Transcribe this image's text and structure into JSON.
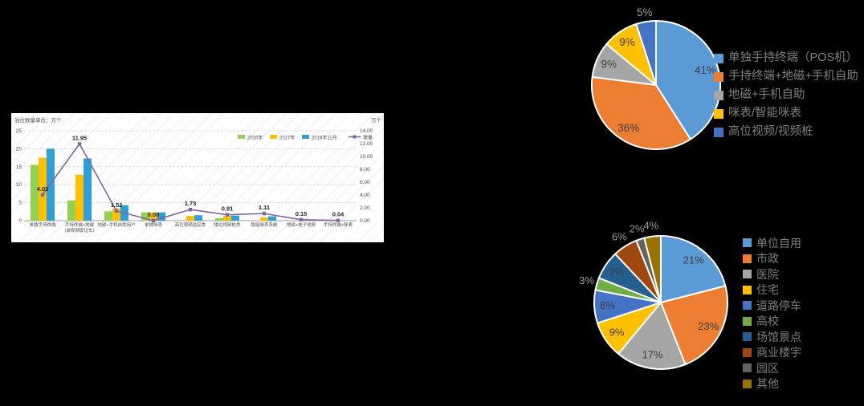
{
  "page": {
    "background": "#000000"
  },
  "styles": {
    "panel_bg": "#ffffff",
    "grid_color": "#d9d9d9",
    "axis_line_color": "#9e9e9e",
    "axis_text_color": "#4d4d4d",
    "data_label_color": "#262626",
    "legend_text_color": "#7f7f7f",
    "pie_inside_label_color": "#3d3d3d",
    "pie_outside_label_color": "#9b9b9b",
    "pie_border_color": "#ffffff"
  },
  "chart_data": [
    {
      "id": "berth-count-combo",
      "type": "bar",
      "subtype": "bar+line",
      "left_axis_title": "泊位数量单位：万个",
      "right_axis_title": "万个",
      "categories": [
        "单独手持终端",
        "手持终端+地磁\n（或视频取证车）",
        "地磁+手机自助用户",
        "单独咪表",
        "高位视频监控类",
        "矮位视频桩类",
        "智能咪表系统",
        "地磁+电子收费",
        "手持终端+咪表"
      ],
      "series": [
        {
          "name": "2016年",
          "kind": "bar",
          "color": "#92D050",
          "values": [
            15.5,
            5.6,
            2.6,
            2.3,
            0,
            0.7,
            0,
            0.1,
            0
          ]
        },
        {
          "name": "2017年",
          "kind": "bar",
          "color": "#FFC000",
          "values": [
            17.5,
            12.8,
            3.4,
            2.3,
            1.3,
            1.3,
            0.9,
            0.1,
            0.05
          ]
        },
        {
          "name": "2018年11月",
          "kind": "bar",
          "color": "#2F9FD8",
          "values": [
            20,
            17.3,
            4.3,
            2.3,
            1.5,
            1.4,
            1.2,
            0.1,
            0.05
          ]
        },
        {
          "name": "增量",
          "kind": "line",
          "axis": "right",
          "color": "#8064A2",
          "values": [
            4.03,
            11.95,
            1.52,
            0,
            1.73,
            0.91,
            1.11,
            0.15,
            0.04
          ],
          "labels": [
            "4.03",
            "11.95",
            "1.52",
            "0.00",
            "1.73",
            "0.91",
            "1.11",
            "0.15",
            "0.04"
          ]
        }
      ],
      "left_axis": {
        "min": 0,
        "max": 25,
        "ticks": [
          "0",
          "5",
          "10",
          "15",
          "20",
          "25"
        ]
      },
      "right_axis": {
        "min": 0,
        "max": 14,
        "ticks": [
          "0.00",
          "2.00",
          "4.00",
          "6.00",
          "8.00",
          "10.00",
          "12.00",
          "14.00"
        ]
      },
      "grid": true,
      "legend_position": "top-right-inside"
    },
    {
      "id": "payment-mode-pie",
      "type": "pie",
      "legend_position": "right",
      "slices": [
        {
          "label": "单独手持终端（POS机）",
          "value": 41,
          "pct": "41%",
          "color": "#5B9BD5",
          "label_inside": true
        },
        {
          "label": "手持终端+地磁+手机自助",
          "value": 36,
          "pct": "36%",
          "color": "#ED7D31",
          "label_inside": true
        },
        {
          "label": "地磁+手机自助",
          "value": 9,
          "pct": "9%",
          "color": "#A5A5A5",
          "label_inside": true
        },
        {
          "label": "咪表/智能咪表",
          "value": 9,
          "pct": "9%",
          "color": "#FFC000",
          "label_inside": true
        },
        {
          "label": "高位视频/视频桩",
          "value": 5,
          "pct": "5%",
          "color": "#4472C4",
          "label_inside": false
        }
      ]
    },
    {
      "id": "scenario-pie",
      "type": "pie",
      "legend_position": "right",
      "slices": [
        {
          "label": "单位自用",
          "value": 21,
          "pct": "21%",
          "color": "#5B9BD5",
          "label_inside": true
        },
        {
          "label": "市政",
          "value": 23,
          "pct": "23%",
          "color": "#ED7D31",
          "label_inside": true
        },
        {
          "label": "医院",
          "value": 17,
          "pct": "17%",
          "color": "#A5A5A5",
          "label_inside": true
        },
        {
          "label": "住宅",
          "value": 9,
          "pct": "9%",
          "color": "#FFC000",
          "label_inside": true
        },
        {
          "label": "道路停车",
          "value": 8,
          "pct": "8%",
          "color": "#4472C4",
          "label_inside": true
        },
        {
          "label": "高校",
          "value": 3,
          "pct": "3%",
          "color": "#70AD47",
          "label_inside": false
        },
        {
          "label": "场馆景点",
          "value": 7,
          "pct": "7%",
          "color": "#255E91",
          "label_inside": true
        },
        {
          "label": "商业楼宇",
          "value": 6,
          "pct": "6%",
          "color": "#9E480E",
          "label_inside": false
        },
        {
          "label": "园区",
          "value": 2,
          "pct": "2%",
          "color": "#636363",
          "label_inside": false
        },
        {
          "label": "其他",
          "value": 4,
          "pct": "4%",
          "color": "#997300",
          "label_inside": false
        }
      ]
    }
  ]
}
